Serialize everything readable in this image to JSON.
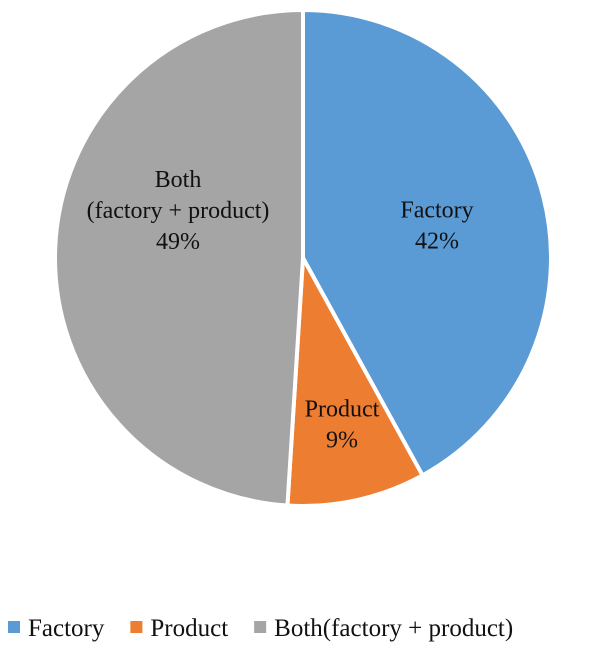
{
  "chart_data": {
    "type": "pie",
    "title": "",
    "slices": [
      {
        "name": "Factory",
        "value": 42,
        "label_lines": [
          "Factory",
          "42%"
        ],
        "color": "#5B9BD5"
      },
      {
        "name": "Product",
        "value": 9,
        "label_lines": [
          "Product",
          "9%"
        ],
        "color": "#ED7D31"
      },
      {
        "name": "Both(factory + product)",
        "value": 49,
        "label_lines": [
          "Both",
          "(factory + product)",
          "49%"
        ],
        "color": "#A5A5A5"
      }
    ],
    "start_angle": "12 o'clock",
    "direction": "clockwise",
    "legend": {
      "position": "bottom",
      "entries": [
        "Factory",
        "Product",
        "Both(factory + product)"
      ]
    }
  }
}
